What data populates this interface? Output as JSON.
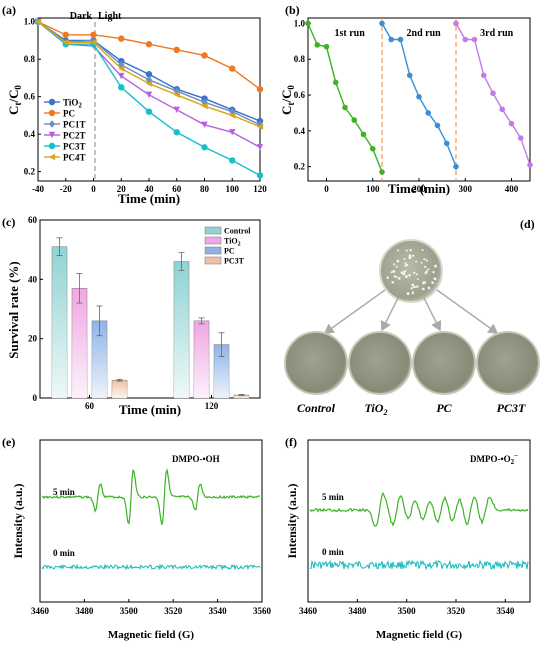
{
  "panel_labels": [
    "(a)",
    "(b)",
    "(c)",
    "(d)",
    "(e)",
    "(f)"
  ],
  "chart_data": [
    {
      "panel": "(a)",
      "type": "line",
      "xlabel": "Time (min)",
      "ylabel_main": "C",
      "ylabel_sub1": "t",
      "ylabel_mid": "/C",
      "ylabel_sub2": "0",
      "xlim": [
        -40,
        120
      ],
      "ylim": [
        0.15,
        1.02
      ],
      "xticks": [
        "-40",
        "-20",
        "0",
        "20",
        "40",
        "60",
        "80",
        "100",
        "120"
      ],
      "yticks": [
        "0.2",
        "0.4",
        "0.6",
        "0.8",
        "1.0"
      ],
      "annotation_left": "Dark",
      "annotation_right": "Light",
      "x": [
        -40,
        -20,
        0,
        20,
        40,
        60,
        80,
        100,
        120
      ],
      "series": [
        {
          "name": "TiO",
          "sub": "2",
          "color": "#3b73c9",
          "marker": "circle",
          "values": [
            1.0,
            0.9,
            0.9,
            0.79,
            0.72,
            0.64,
            0.59,
            0.53,
            0.47
          ]
        },
        {
          "name": "PC",
          "sub": "",
          "color": "#f07820",
          "marker": "circle",
          "values": [
            1.0,
            0.93,
            0.93,
            0.91,
            0.88,
            0.85,
            0.82,
            0.75,
            0.64
          ]
        },
        {
          "name": "PC1T",
          "sub": "",
          "color": "#6b8fc2",
          "marker": "diamond",
          "values": [
            1.0,
            0.89,
            0.9,
            0.77,
            0.69,
            0.63,
            0.57,
            0.52,
            0.45
          ]
        },
        {
          "name": "PC2T",
          "sub": "",
          "color": "#b65fe0",
          "marker": "tri-down",
          "values": [
            1.0,
            0.88,
            0.87,
            0.71,
            0.61,
            0.53,
            0.45,
            0.41,
            0.33
          ]
        },
        {
          "name": "PC3T",
          "sub": "",
          "color": "#14c1c9",
          "marker": "circle",
          "values": [
            1.0,
            0.88,
            0.88,
            0.65,
            0.52,
            0.41,
            0.33,
            0.26,
            0.18
          ]
        },
        {
          "name": "PC4T",
          "sub": "",
          "color": "#d9a51a",
          "marker": "tri-left",
          "values": [
            1.0,
            0.89,
            0.89,
            0.75,
            0.67,
            0.61,
            0.55,
            0.5,
            0.44
          ]
        }
      ],
      "legend_position": "left-middle"
    },
    {
      "panel": "(b)",
      "type": "line",
      "xlabel": "Time (min)",
      "ylabel_main": "C",
      "ylabel_sub1": "t",
      "ylabel_mid": "/C",
      "ylabel_sub2": "0",
      "xlim": [
        -40,
        440
      ],
      "ylim": [
        0.12,
        1.03
      ],
      "xticks": [
        "0",
        "100",
        "200",
        "300",
        "400"
      ],
      "yticks": [
        "0.2",
        "0.4",
        "0.6",
        "0.8",
        "1.0"
      ],
      "run_labels": [
        "1st run",
        "2nd run",
        "3rd run"
      ],
      "run_dividers": [
        120,
        280
      ],
      "series": [
        {
          "name": "1st run",
          "color": "#3bb324",
          "x": [
            -40,
            -20,
            0,
            20,
            40,
            60,
            80,
            100,
            120
          ],
          "values": [
            1.0,
            0.88,
            0.87,
            0.67,
            0.53,
            0.46,
            0.38,
            0.3,
            0.17
          ]
        },
        {
          "name": "2nd run",
          "color": "#3b8fd6",
          "x": [
            120,
            140,
            160,
            180,
            200,
            220,
            240,
            260,
            280
          ],
          "values": [
            1.0,
            0.91,
            0.91,
            0.71,
            0.59,
            0.5,
            0.43,
            0.33,
            0.2
          ]
        },
        {
          "name": "3rd run",
          "color": "#c47be8",
          "x": [
            280,
            300,
            320,
            340,
            360,
            380,
            400,
            420,
            440
          ],
          "values": [
            1.0,
            0.91,
            0.91,
            0.71,
            0.61,
            0.52,
            0.44,
            0.36,
            0.21
          ]
        }
      ]
    },
    {
      "panel": "(c)",
      "type": "bar",
      "xlabel": "Time (min)",
      "ylabel": "Survival rate (%)",
      "ylim": [
        0,
        60
      ],
      "yticks": [
        "0",
        "20",
        "40",
        "60"
      ],
      "categories": [
        "60",
        "120"
      ],
      "series": [
        {
          "name": "Control",
          "sub": "",
          "color": "#8fd3d3",
          "values": [
            51,
            46
          ],
          "errors": [
            3,
            3
          ]
        },
        {
          "name": "TiO",
          "sub": "2",
          "color": "#f0a6e3",
          "values": [
            37,
            26
          ],
          "errors": [
            5,
            1
          ]
        },
        {
          "name": "PC",
          "sub": "",
          "color": "#8fb3e8",
          "values": [
            26,
            18
          ],
          "errors": [
            5,
            4
          ]
        },
        {
          "name": "PC3T",
          "sub": "",
          "color": "#f0c2a3",
          "values": [
            6,
            1
          ],
          "errors": [
            0.3,
            0.2
          ]
        }
      ],
      "legend_position": "top-right"
    },
    {
      "panel": "(e)",
      "type": "line",
      "xlabel": "Magnetic field (G)",
      "ylabel": "Intensity (a.u.)",
      "xlim": [
        3460,
        3560
      ],
      "xticks": [
        "3460",
        "3480",
        "3500",
        "3520",
        "3540",
        "3560"
      ],
      "legend_label": "DMPO-•OH",
      "series": [
        {
          "name": "5 min",
          "color": "#3bb324"
        },
        {
          "name": "0 min",
          "color": "#14b8b8"
        }
      ],
      "peak_positions": [
        3486,
        3501,
        3516,
        3531
      ],
      "peak_relative_intensity": [
        1,
        2,
        2,
        1
      ]
    },
    {
      "panel": "(f)",
      "type": "line",
      "xlabel": "Magnetic field (G)",
      "ylabel": "Intensity (a.u.)",
      "xlim": [
        3460,
        3550
      ],
      "xticks": [
        "3460",
        "3480",
        "3500",
        "3520",
        "3540"
      ],
      "legend_label": "DMPO-•O",
      "legend_suffix": "2",
      "legend_charge": "−",
      "series": [
        {
          "name": "5 min",
          "color": "#3bb324"
        },
        {
          "name": "0 min",
          "color": "#14b8b8"
        }
      ]
    }
  ],
  "panel_d": {
    "labels": [
      "Control",
      "TiO",
      "PC",
      "PC3T"
    ],
    "label_subs": [
      "",
      "2",
      "",
      ""
    ]
  }
}
